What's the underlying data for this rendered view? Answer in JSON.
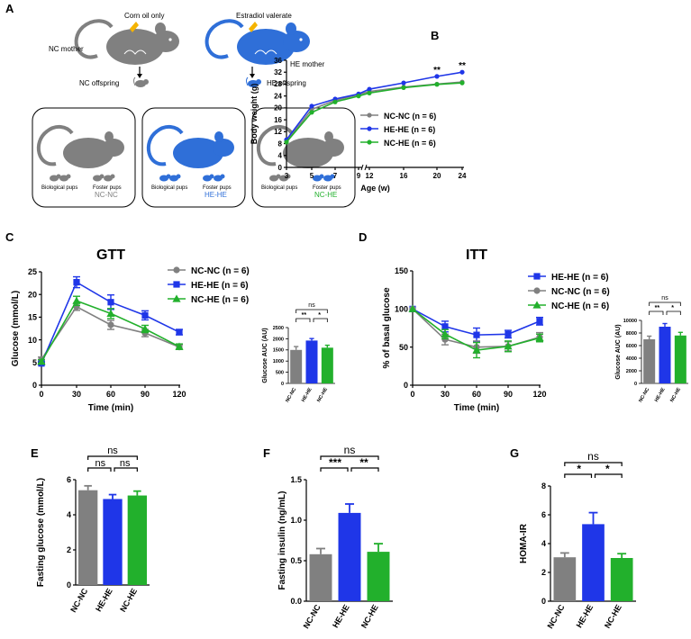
{
  "colors": {
    "nc": "#808080",
    "he": "#1f36e8",
    "nche": "#22b02c",
    "axis": "#000000"
  },
  "panel_a": {
    "letter": "A",
    "treat_nc": "Corn oil only",
    "treat_he": "Estradiol valerate",
    "nc_mother": "NC mother",
    "he_mother": "HE mother",
    "nc_offspring": "NC offspring",
    "he_offspring": "HE offspring",
    "boxes": [
      {
        "bio": "Biological pups",
        "foster": "Foster pups",
        "group": "NC-NC"
      },
      {
        "bio": "Biological pups",
        "foster": "Foster pups",
        "group": "HE-HE"
      },
      {
        "bio": "Biological pups",
        "foster": "Foster pups",
        "group": "NC-HE"
      }
    ]
  },
  "chart_data": [
    {
      "id": "B",
      "type": "line",
      "letter": "B",
      "xlabel": "Age (w)",
      "ylabel": "Body weight (g)",
      "x": [
        3,
        5,
        7,
        9,
        12,
        16,
        20,
        24
      ],
      "xticks": [
        "3",
        "5",
        "7",
        "9",
        "12",
        "16",
        "20",
        "24"
      ],
      "yticks": [
        "0",
        "4",
        "8",
        "12",
        "16",
        "20",
        "24",
        "28",
        "32",
        "36"
      ],
      "ylim": [
        0,
        36
      ],
      "series": [
        {
          "name": "NC-NC (n = 6)",
          "values": [
            8.8,
            19.5,
            22.5,
            24.5,
            25.5,
            27,
            28,
            28.7
          ]
        },
        {
          "name": "HE-HE (n = 6)",
          "values": [
            9.3,
            20.6,
            23,
            24.7,
            26.3,
            28.4,
            30.6,
            32
          ]
        },
        {
          "name": "NC-HE (n = 6)",
          "values": [
            8.5,
            18.5,
            22,
            24,
            25,
            26.8,
            27.9,
            28.4
          ]
        }
      ],
      "annotations": [
        "**",
        "**"
      ]
    },
    {
      "id": "C",
      "type": "line",
      "letter": "C",
      "title": "GTT",
      "xlabel": "Time (min)",
      "ylabel": "Glucose (mmol/L)",
      "x": [
        0,
        30,
        60,
        90,
        120
      ],
      "xticks": [
        "0",
        "30",
        "60",
        "90",
        "120"
      ],
      "yticks": [
        "0",
        "5",
        "10",
        "15",
        "20",
        "25"
      ],
      "ylim": [
        0,
        25
      ],
      "series": [
        {
          "name": "NC-NC (n = 6)",
          "values": [
            5.7,
            17.3,
            13.3,
            11.5,
            8.4
          ],
          "err": [
            0.5,
            0.8,
            1.0,
            0.8,
            0.5
          ]
        },
        {
          "name": "HE-HE (n = 6)",
          "values": [
            4.8,
            22.7,
            18.3,
            15.4,
            11.7
          ],
          "err": [
            0.3,
            1.2,
            1.6,
            1.0,
            0.6
          ]
        },
        {
          "name": "NC-HE (n = 6)",
          "values": [
            5.2,
            18.6,
            15.8,
            12.4,
            8.5
          ],
          "err": [
            0.4,
            1.0,
            1.1,
            0.8,
            0.6
          ]
        }
      ]
    },
    {
      "id": "C_inset",
      "type": "bar",
      "ylabel": "Glucose AUC (AU)",
      "categories": [
        "NC-NC",
        "HE-HE",
        "NC-HE"
      ],
      "values": [
        1500,
        1920,
        1600
      ],
      "err": [
        150,
        90,
        110
      ],
      "yticks": [
        "0",
        "500",
        "1000",
        "1500",
        "2000",
        "2500"
      ],
      "ylim": [
        0,
        2500
      ],
      "annotations": [
        "ns",
        "**",
        "*"
      ]
    },
    {
      "id": "D",
      "type": "line",
      "letter": "D",
      "title": "ITT",
      "xlabel": "Time (min)",
      "ylabel": "% of basal glucose",
      "x": [
        0,
        30,
        60,
        90,
        120
      ],
      "xticks": [
        "0",
        "30",
        "60",
        "90",
        "120"
      ],
      "yticks": [
        "0",
        "50",
        "100",
        "150"
      ],
      "ylim": [
        0,
        150
      ],
      "series": [
        {
          "name": "HE-HE (n = 6)",
          "values": [
            100,
            77,
            66,
            67,
            84
          ],
          "err": [
            0,
            7,
            9,
            5,
            5
          ]
        },
        {
          "name": "NC-NC (n = 6)",
          "values": [
            100,
            60,
            50,
            51,
            63
          ],
          "err": [
            0,
            7,
            8,
            6,
            6
          ]
        },
        {
          "name": "NC-HE (n = 6)",
          "values": [
            100,
            67,
            46,
            51,
            62
          ],
          "err": [
            0,
            6,
            10,
            7,
            5
          ]
        }
      ]
    },
    {
      "id": "D_inset",
      "type": "bar",
      "ylabel": "Glucose AUC (AU)",
      "categories": [
        "NC-NC",
        "HE-HE",
        "NC-HE"
      ],
      "values": [
        7000,
        9000,
        7600
      ],
      "err": [
        500,
        500,
        500
      ],
      "yticks": [
        "0",
        "2000",
        "4000",
        "6000",
        "8000",
        "10000"
      ],
      "ylim": [
        0,
        10000
      ],
      "annotations": [
        "ns",
        "**",
        "*"
      ]
    },
    {
      "id": "E",
      "type": "bar",
      "letter": "E",
      "ylabel": "Fasting glucose (mmol/L)",
      "categories": [
        "NC-NC",
        "HE-HE",
        "NC-HE"
      ],
      "values": [
        5.4,
        4.9,
        5.1
      ],
      "err": [
        0.25,
        0.25,
        0.25
      ],
      "yticks": [
        "0",
        "2",
        "4",
        "6"
      ],
      "ylim": [
        0,
        6
      ],
      "annotations": [
        "ns",
        "ns",
        "ns"
      ]
    },
    {
      "id": "F",
      "type": "bar",
      "letter": "F",
      "ylabel": "Fasting insulin (ng/mL)",
      "categories": [
        "NC-NC",
        "HE-HE",
        "NC-HE"
      ],
      "values": [
        0.58,
        1.09,
        0.61
      ],
      "err": [
        0.07,
        0.11,
        0.1
      ],
      "yticks": [
        "0.0",
        "0.5",
        "1.0",
        "1.5"
      ],
      "ylim": [
        0,
        1.5
      ],
      "annotations": [
        "ns",
        "***",
        "**"
      ]
    },
    {
      "id": "G",
      "type": "bar",
      "letter": "G",
      "ylabel": "HOMA-IR",
      "categories": [
        "NC-NC",
        "HE-HE",
        "NC-HE"
      ],
      "values": [
        3.05,
        5.35,
        3.0
      ],
      "err": [
        0.3,
        0.8,
        0.3
      ],
      "yticks": [
        "0",
        "2",
        "4",
        "6",
        "8"
      ],
      "ylim": [
        0,
        8
      ],
      "annotations": [
        "ns",
        "*",
        "*"
      ]
    }
  ]
}
